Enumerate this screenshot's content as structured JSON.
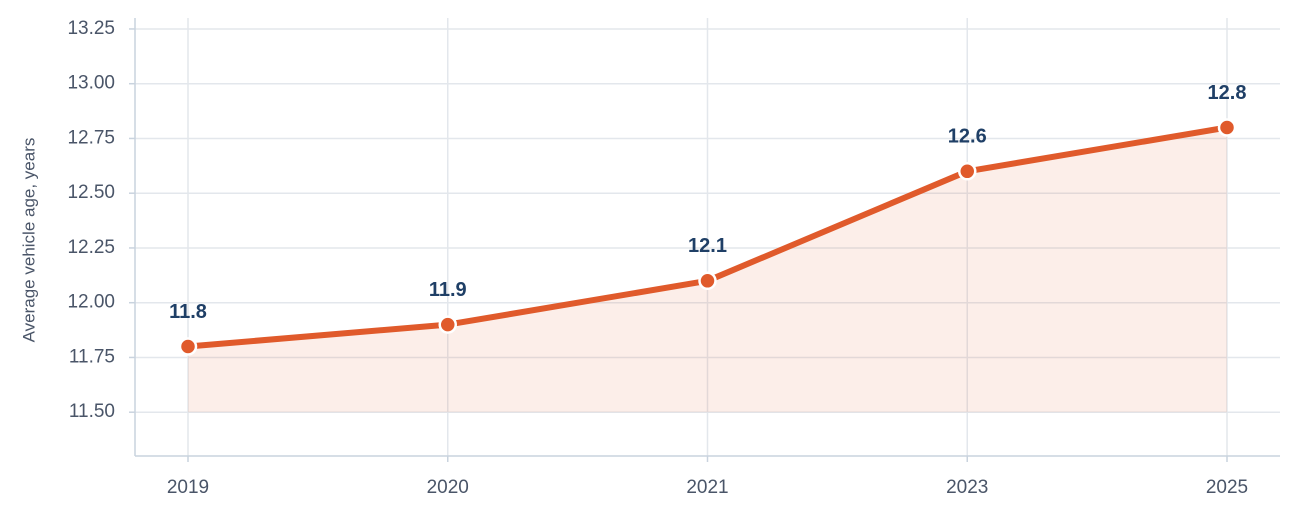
{
  "chart_data": {
    "type": "line",
    "y_label": "Average vehicle age, years",
    "categories": [
      "2019",
      "2020",
      "2021",
      "2023",
      "2025"
    ],
    "values": [
      11.8,
      11.9,
      12.1,
      12.6,
      12.8
    ],
    "color": "#e05a2b",
    "area": true,
    "ylim": [
      11.3,
      13.3
    ],
    "yticks": [
      {
        "value": 11.5,
        "label": "11.50"
      },
      11.75,
      {
        "value": 12.0,
        "label": "12.00"
      },
      12.25,
      {
        "value": 12.5,
        "label": "12.50"
      },
      12.75,
      {
        "value": 13.0,
        "label": "13.00"
      },
      13.25
    ],
    "grid": true
  }
}
